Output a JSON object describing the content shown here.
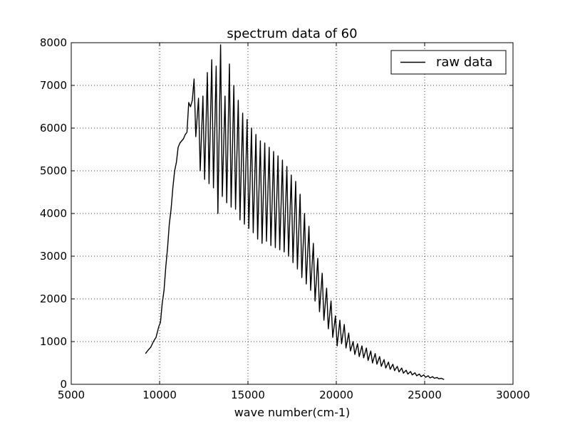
{
  "chart_data": {
    "type": "line",
    "title": "spectrum data of 60",
    "xlabel": "wave number(cm-1)",
    "ylabel": "",
    "xlim": [
      5000,
      30000
    ],
    "ylim": [
      0,
      8000
    ],
    "xticks": [
      5000,
      10000,
      15000,
      20000,
      25000,
      30000
    ],
    "yticks": [
      0,
      1000,
      2000,
      3000,
      4000,
      5000,
      6000,
      7000,
      8000
    ],
    "xtick_labels": [
      "5000",
      "10000",
      "15000",
      "20000",
      "25000",
      "30000"
    ],
    "ytick_labels": [
      "0",
      "1000",
      "2000",
      "3000",
      "4000",
      "5000",
      "6000",
      "7000",
      "8000"
    ],
    "grid": true,
    "grid_style": "dotted",
    "legend_position": "top-right",
    "line_color": "#000000",
    "series": [
      {
        "name": "raw data",
        "color": "#000000",
        "x": [
          9200,
          9350,
          9500,
          9650,
          9800,
          9950,
          10050,
          10150,
          10250,
          10350,
          10450,
          10550,
          10650,
          10750,
          10850,
          10950,
          11050,
          11150,
          11250,
          11350,
          11450,
          11550,
          11650,
          11750,
          11850,
          11950,
          12050,
          12200,
          12300,
          12450,
          12550,
          12700,
          12800,
          12950,
          13050,
          13200,
          13300,
          13450,
          13550,
          13700,
          13800,
          13950,
          14050,
          14200,
          14300,
          14450,
          14550,
          14700,
          14800,
          14950,
          15050,
          15200,
          15300,
          15450,
          15550,
          15700,
          15800,
          15950,
          16050,
          16200,
          16300,
          16450,
          16550,
          16700,
          16800,
          16950,
          17050,
          17200,
          17300,
          17450,
          17550,
          17700,
          17800,
          17950,
          18050,
          18200,
          18300,
          18450,
          18550,
          18700,
          18800,
          18950,
          19050,
          19200,
          19300,
          19450,
          19550,
          19700,
          19800,
          19950,
          20050,
          20200,
          20300,
          20450,
          20550,
          20700,
          20800,
          20950,
          21050,
          21200,
          21300,
          21450,
          21550,
          21700,
          21800,
          21950,
          22050,
          22200,
          22300,
          22450,
          22550,
          22700,
          22800,
          22950,
          23050,
          23200,
          23300,
          23450,
          23550,
          23700,
          23800,
          23950,
          24050,
          24200,
          24300,
          24450,
          24550,
          24700,
          24800,
          24950,
          25050,
          25200,
          25300,
          25450,
          25550,
          25700,
          25800,
          25950,
          26100
        ],
        "y": [
          720,
          800,
          870,
          1000,
          1100,
          1350,
          1450,
          1900,
          2200,
          2750,
          3200,
          3750,
          4100,
          4600,
          5000,
          5200,
          5550,
          5650,
          5700,
          5750,
          5850,
          5900,
          6600,
          6500,
          6650,
          7150,
          5800,
          6700,
          5000,
          6750,
          4800,
          7300,
          4700,
          7600,
          4600,
          7450,
          4000,
          7950,
          4400,
          6750,
          4250,
          7500,
          4150,
          7000,
          4100,
          6650,
          3850,
          6350,
          3750,
          6200,
          3650,
          6000,
          3550,
          5850,
          3400,
          5700,
          3300,
          5650,
          3350,
          5550,
          3250,
          5450,
          3200,
          5350,
          3150,
          5250,
          3100,
          5100,
          3000,
          4900,
          2850,
          4750,
          2700,
          4450,
          2500,
          4000,
          2350,
          3700,
          2200,
          3300,
          1950,
          2950,
          1700,
          2600,
          1500,
          2250,
          1300,
          1950,
          1100,
          1600,
          900,
          1500,
          950,
          1400,
          850,
          1200,
          780,
          1000,
          700,
          950,
          650,
          900,
          620,
          850,
          560,
          780,
          500,
          720,
          470,
          650,
          420,
          580,
          380,
          520,
          350,
          470,
          320,
          420,
          290,
          380,
          260,
          330,
          240,
          300,
          220,
          270,
          200,
          240,
          180,
          220,
          165,
          200,
          150,
          180,
          140,
          160,
          130,
          140,
          110
        ]
      }
    ]
  }
}
